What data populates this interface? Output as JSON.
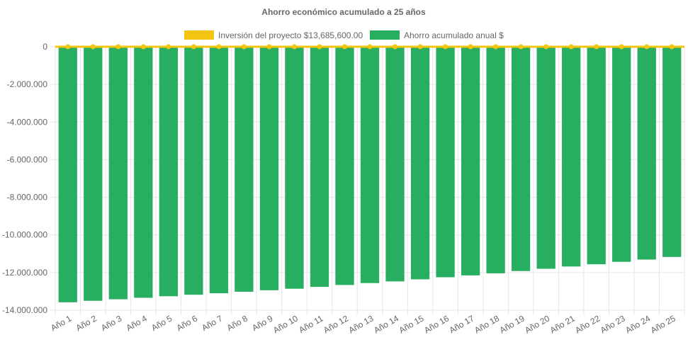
{
  "chart_data": {
    "type": "bar",
    "title": "Ahorro económico acumulado a 25 años",
    "xlabel": "",
    "ylabel": "",
    "ylim": [
      -14000000,
      0
    ],
    "y_ticks": [
      0,
      -2000000,
      -4000000,
      -6000000,
      -8000000,
      -10000000,
      -12000000,
      -14000000
    ],
    "y_tick_labels": [
      "0",
      "-2.000.000",
      "-4.000.000",
      "-6.000.000",
      "-8.000.000",
      "-10.000.000",
      "-12.000.000",
      "-14.000.000"
    ],
    "grid": true,
    "legend_position": "top-center",
    "categories": [
      "Año 1",
      "Año 2",
      "Año 3",
      "Año 4",
      "Año 5",
      "Año 6",
      "Año 7",
      "Año 8",
      "Año 9",
      "Año 10",
      "Año 11",
      "Año 12",
      "Año 13",
      "Año 14",
      "Año 15",
      "Año 16",
      "Año 17",
      "Año 18",
      "Año 19",
      "Año 20",
      "Año 21",
      "Año 22",
      "Año 23",
      "Año 24",
      "Año 25"
    ],
    "series": [
      {
        "name": "Inversión del proyecto $13,685,600.00",
        "type": "line",
        "color": "#f2c511",
        "values": [
          0,
          0,
          0,
          0,
          0,
          0,
          0,
          0,
          0,
          0,
          0,
          0,
          0,
          0,
          0,
          0,
          0,
          0,
          0,
          0,
          0,
          0,
          0,
          0,
          0
        ]
      },
      {
        "name": "Ahorro acumulado anual $",
        "type": "bar",
        "color": "#27ae60",
        "values": [
          -13580000,
          -13500000,
          -13420000,
          -13340000,
          -13260000,
          -13180000,
          -13100000,
          -13020000,
          -12940000,
          -12860000,
          -12760000,
          -12660000,
          -12560000,
          -12470000,
          -12360000,
          -12250000,
          -12150000,
          -12040000,
          -11920000,
          -11800000,
          -11680000,
          -11560000,
          -11430000,
          -11310000,
          -11170000
        ]
      }
    ]
  }
}
